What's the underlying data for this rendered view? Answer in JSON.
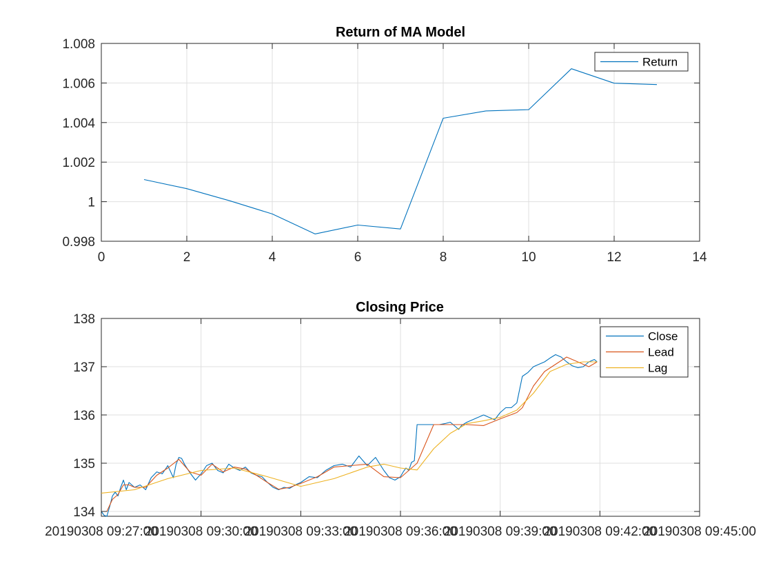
{
  "chart_data": [
    {
      "type": "line",
      "title": "Return of MA Model",
      "xlim": [
        0,
        14
      ],
      "ylim": [
        0.998,
        1.008
      ],
      "xticks": [
        0,
        2,
        4,
        6,
        8,
        10,
        12,
        14
      ],
      "xtick_labels": [
        "0",
        "2",
        "4",
        "6",
        "8",
        "10",
        "12",
        "14"
      ],
      "yticks": [
        0.998,
        1.0,
        1.002,
        1.004,
        1.006,
        1.008
      ],
      "ytick_labels": [
        "0.998",
        "1",
        "1.002",
        "1.004",
        "1.006",
        "1.008"
      ],
      "grid": true,
      "legend_position": "top-right",
      "series": [
        {
          "name": "Return",
          "color": "#0072BD",
          "x": [
            1,
            2,
            3,
            4,
            5,
            6,
            7,
            8,
            9,
            10,
            11,
            12,
            13
          ],
          "y": [
            1.00112,
            1.00066,
            1.00005,
            0.99938,
            0.99837,
            0.99882,
            0.99862,
            1.00422,
            1.00459,
            1.00465,
            1.00672,
            1.00599,
            1.00592
          ]
        }
      ]
    },
    {
      "type": "line",
      "title": "Closing Price",
      "ylim": [
        133.9,
        138
      ],
      "yticks": [
        134,
        135,
        136,
        137,
        138
      ],
      "ytick_labels": [
        "134",
        "135",
        "136",
        "137",
        "138"
      ],
      "xlim": [
        "09:27:00",
        "09:45:00"
      ],
      "xticks": [
        "09:27:00",
        "09:30:00",
        "09:33:00",
        "09:36:00",
        "09:39:00",
        "09:42:00",
        "09:45:00"
      ],
      "xtick_labels": [
        "20190308 09:27:00",
        "20190308 09:30:00",
        "20190308 09:33:00",
        "20190308 09:36:00",
        "20190308 09:39:00",
        "20190308 09:42:00",
        "20190308 09:45:00"
      ],
      "grid": true,
      "legend_position": "top-right",
      "series": [
        {
          "name": "Close",
          "color": "#0072BD",
          "x": [
            "09:27:00",
            "09:27:05",
            "09:27:10",
            "09:27:15",
            "09:27:20",
            "09:27:25",
            "09:27:30",
            "09:27:35",
            "09:27:40",
            "09:27:45",
            "09:27:50",
            "09:27:55",
            "09:28:00",
            "09:28:10",
            "09:28:20",
            "09:28:30",
            "09:28:40",
            "09:28:50",
            "09:29:00",
            "09:29:10",
            "09:29:15",
            "09:29:20",
            "09:29:25",
            "09:29:30",
            "09:29:40",
            "09:29:50",
            "09:30:00",
            "09:30:10",
            "09:30:20",
            "09:30:30",
            "09:30:40",
            "09:30:50",
            "09:31:00",
            "09:31:10",
            "09:31:20",
            "09:31:30",
            "09:31:40",
            "09:31:50",
            "09:32:00",
            "09:32:10",
            "09:32:20",
            "09:32:30",
            "09:32:40",
            "09:32:50",
            "09:33:00",
            "09:33:15",
            "09:33:30",
            "09:33:45",
            "09:34:00",
            "09:34:15",
            "09:34:30",
            "09:34:45",
            "09:35:00",
            "09:35:15",
            "09:35:30",
            "09:35:40",
            "09:35:50",
            "09:36:00",
            "09:36:05",
            "09:36:10",
            "09:36:15",
            "09:36:20",
            "09:36:25",
            "09:36:30",
            "09:36:40",
            "09:36:50",
            "09:37:00",
            "09:37:10",
            "09:37:20",
            "09:37:30",
            "09:37:40",
            "09:37:45",
            "09:37:50",
            "09:38:00",
            "09:38:10",
            "09:38:20",
            "09:38:30",
            "09:38:40",
            "09:38:50",
            "09:39:00",
            "09:39:10",
            "09:39:20",
            "09:39:30",
            "09:39:40",
            "09:39:50",
            "09:40:00",
            "09:40:10",
            "09:40:20",
            "09:40:30",
            "09:40:40",
            "09:40:50",
            "09:41:00",
            "09:41:10",
            "09:41:20",
            "09:41:30",
            "09:41:40",
            "09:41:50",
            "09:41:55"
          ],
          "y": [
            134.0,
            133.92,
            133.9,
            134.1,
            134.32,
            134.4,
            134.32,
            134.5,
            134.65,
            134.45,
            134.6,
            134.55,
            134.5,
            134.55,
            134.45,
            134.7,
            134.82,
            134.78,
            134.95,
            134.7,
            134.98,
            135.12,
            135.1,
            134.98,
            134.8,
            134.65,
            134.78,
            134.95,
            135.0,
            134.85,
            134.8,
            134.98,
            134.9,
            134.85,
            134.92,
            134.8,
            134.75,
            134.72,
            134.6,
            134.5,
            134.45,
            134.5,
            134.48,
            134.55,
            134.6,
            134.72,
            134.7,
            134.85,
            134.95,
            134.98,
            134.92,
            135.15,
            134.95,
            135.12,
            134.85,
            134.7,
            134.65,
            134.72,
            134.82,
            134.9,
            134.85,
            135.02,
            135.05,
            135.8,
            135.8,
            135.8,
            135.8,
            135.8,
            135.82,
            135.85,
            135.75,
            135.7,
            135.78,
            135.85,
            135.9,
            135.95,
            136.0,
            135.95,
            135.9,
            136.05,
            136.15,
            136.15,
            136.25,
            136.8,
            136.88,
            137.0,
            137.05,
            137.1,
            137.18,
            137.25,
            137.2,
            137.1,
            137.02,
            136.98,
            137.0,
            137.1,
            137.15,
            137.1
          ]
        },
        {
          "name": "Lead",
          "color": "#D95319",
          "x": [
            "09:27:00",
            "09:27:10",
            "09:27:20",
            "09:27:30",
            "09:27:40",
            "09:27:50",
            "09:28:00",
            "09:28:20",
            "09:28:40",
            "09:29:00",
            "09:29:20",
            "09:29:40",
            "09:30:00",
            "09:30:20",
            "09:30:40",
            "09:31:00",
            "09:31:20",
            "09:31:40",
            "09:32:00",
            "09:32:20",
            "09:32:40",
            "09:33:00",
            "09:33:30",
            "09:34:00",
            "09:34:30",
            "09:35:00",
            "09:35:30",
            "09:36:00",
            "09:36:30",
            "09:37:00",
            "09:37:30",
            "09:38:00",
            "09:38:30",
            "09:39:00",
            "09:39:30",
            "09:39:40",
            "09:40:00",
            "09:40:20",
            "09:40:40",
            "09:41:00",
            "09:41:20",
            "09:41:40",
            "09:41:55"
          ],
          "y": [
            134.0,
            134.0,
            134.25,
            134.35,
            134.55,
            134.55,
            134.5,
            134.5,
            134.75,
            134.9,
            135.08,
            134.82,
            134.75,
            134.98,
            134.82,
            134.92,
            134.88,
            134.75,
            134.6,
            134.46,
            134.5,
            134.58,
            134.72,
            134.92,
            134.95,
            134.98,
            134.72,
            134.7,
            135.0,
            135.8,
            135.8,
            135.8,
            135.78,
            135.92,
            136.05,
            136.15,
            136.6,
            136.9,
            137.05,
            137.2,
            137.1,
            137.0,
            137.1
          ]
        },
        {
          "name": "Lag",
          "color": "#EDB120",
          "x": [
            "09:27:00",
            "09:28:00",
            "09:29:00",
            "09:30:00",
            "09:31:00",
            "09:32:00",
            "09:33:00",
            "09:34:00",
            "09:35:00",
            "09:35:30",
            "09:36:00",
            "09:36:30",
            "09:37:00",
            "09:37:30",
            "09:38:00",
            "09:38:30",
            "09:39:00",
            "09:39:30",
            "09:40:00",
            "09:40:30",
            "09:41:00",
            "09:41:30",
            "09:41:55"
          ],
          "y": [
            134.38,
            134.45,
            134.68,
            134.85,
            134.9,
            134.72,
            134.52,
            134.68,
            134.92,
            134.98,
            134.9,
            134.86,
            135.3,
            135.62,
            135.82,
            135.88,
            135.95,
            136.1,
            136.45,
            136.9,
            137.05,
            137.1,
            137.1
          ]
        }
      ]
    }
  ]
}
